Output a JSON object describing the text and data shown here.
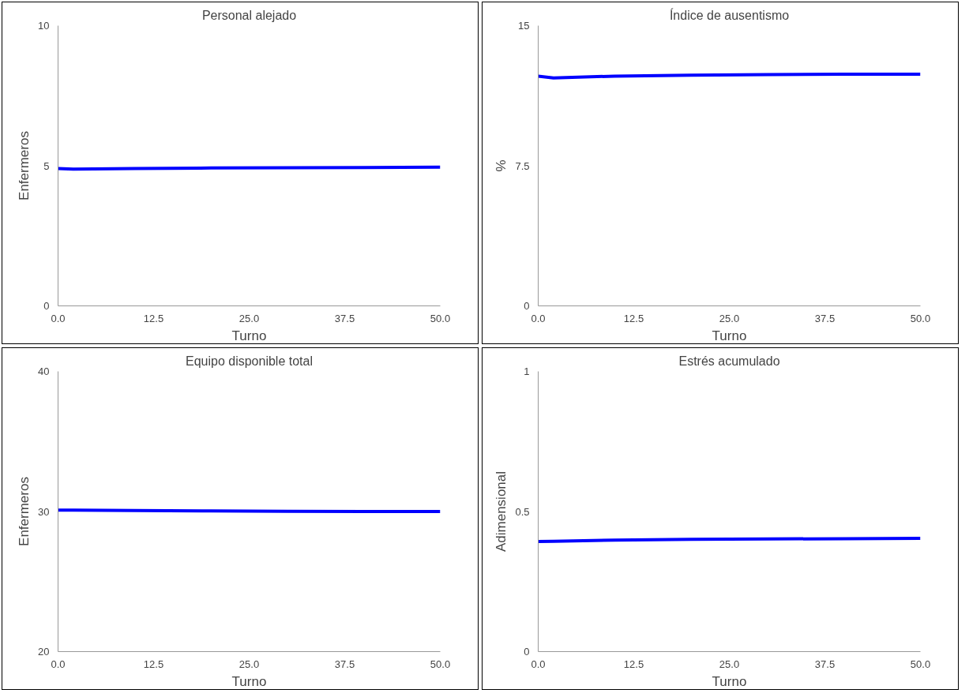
{
  "chart_data": [
    {
      "type": "line",
      "title": "Personal alejado",
      "xlabel": "Turno",
      "ylabel": "Enfermeros",
      "x": [
        0,
        2,
        10,
        20,
        30,
        40,
        50
      ],
      "series": [
        {
          "color": "#0000ff",
          "values": [
            4.9,
            4.88,
            4.9,
            4.92,
            4.93,
            4.94,
            4.95
          ]
        }
      ],
      "xlim": [
        0,
        50
      ],
      "xticks": [
        {
          "value": 0,
          "label": "0.0"
        },
        {
          "value": 12.5,
          "label": "12.5"
        },
        {
          "value": 25,
          "label": "25.0"
        },
        {
          "value": 37.5,
          "label": "37.5"
        },
        {
          "value": 50,
          "label": "50.0"
        }
      ],
      "ylim": [
        0,
        10
      ],
      "yticks": [
        0,
        5,
        10
      ],
      "grid": false,
      "line_style": "solid"
    },
    {
      "type": "line",
      "title": "Índice de ausentismo",
      "xlabel": "Turno",
      "ylabel": "%",
      "x": [
        0,
        2,
        10,
        20,
        30,
        40,
        50
      ],
      "series": [
        {
          "color": "#0000ff",
          "values": [
            12.3,
            12.2,
            12.3,
            12.35,
            12.38,
            12.4,
            12.4
          ]
        }
      ],
      "xlim": [
        0,
        50
      ],
      "xticks": [
        {
          "value": 0,
          "label": "0.0"
        },
        {
          "value": 12.5,
          "label": "12.5"
        },
        {
          "value": 25,
          "label": "25.0"
        },
        {
          "value": 37.5,
          "label": "37.5"
        },
        {
          "value": 50,
          "label": "50.0"
        }
      ],
      "ylim": [
        0,
        15
      ],
      "yticks": [
        0,
        7.5,
        15
      ],
      "grid": false,
      "line_style": "solid"
    },
    {
      "type": "line",
      "title": "Equipo disponible total",
      "xlabel": "Turno",
      "ylabel": "Enfermeros",
      "x": [
        0,
        2,
        10,
        20,
        30,
        40,
        50
      ],
      "series": [
        {
          "color": "#0000ff",
          "values": [
            30.1,
            30.1,
            30.07,
            30.04,
            30.02,
            30.0,
            30.0
          ]
        }
      ],
      "xlim": [
        0,
        50
      ],
      "xticks": [
        {
          "value": 0,
          "label": "0.0"
        },
        {
          "value": 12.5,
          "label": "12.5"
        },
        {
          "value": 25,
          "label": "25.0"
        },
        {
          "value": 37.5,
          "label": "37.5"
        },
        {
          "value": 50,
          "label": "50.0"
        }
      ],
      "ylim": [
        20,
        40
      ],
      "yticks": [
        20,
        30,
        40
      ],
      "grid": false,
      "line_style": "solid"
    },
    {
      "type": "line",
      "title": "Estrés acumulado",
      "xlabel": "Turno",
      "ylabel": "Adimensional",
      "x": [
        0,
        2,
        10,
        20,
        30,
        40,
        50
      ],
      "series": [
        {
          "color": "#0000ff",
          "values": [
            0.393,
            0.394,
            0.398,
            0.401,
            0.402,
            0.403,
            0.404
          ]
        }
      ],
      "xlim": [
        0,
        50
      ],
      "xticks": [
        {
          "value": 0,
          "label": "0.0"
        },
        {
          "value": 12.5,
          "label": "12.5"
        },
        {
          "value": 25,
          "label": "25.0"
        },
        {
          "value": 37.5,
          "label": "37.5"
        },
        {
          "value": 50,
          "label": "50.0"
        }
      ],
      "ylim": [
        0,
        1
      ],
      "yticks": [
        0,
        0.5,
        1
      ],
      "grid": false,
      "line_style": "solid"
    }
  ]
}
